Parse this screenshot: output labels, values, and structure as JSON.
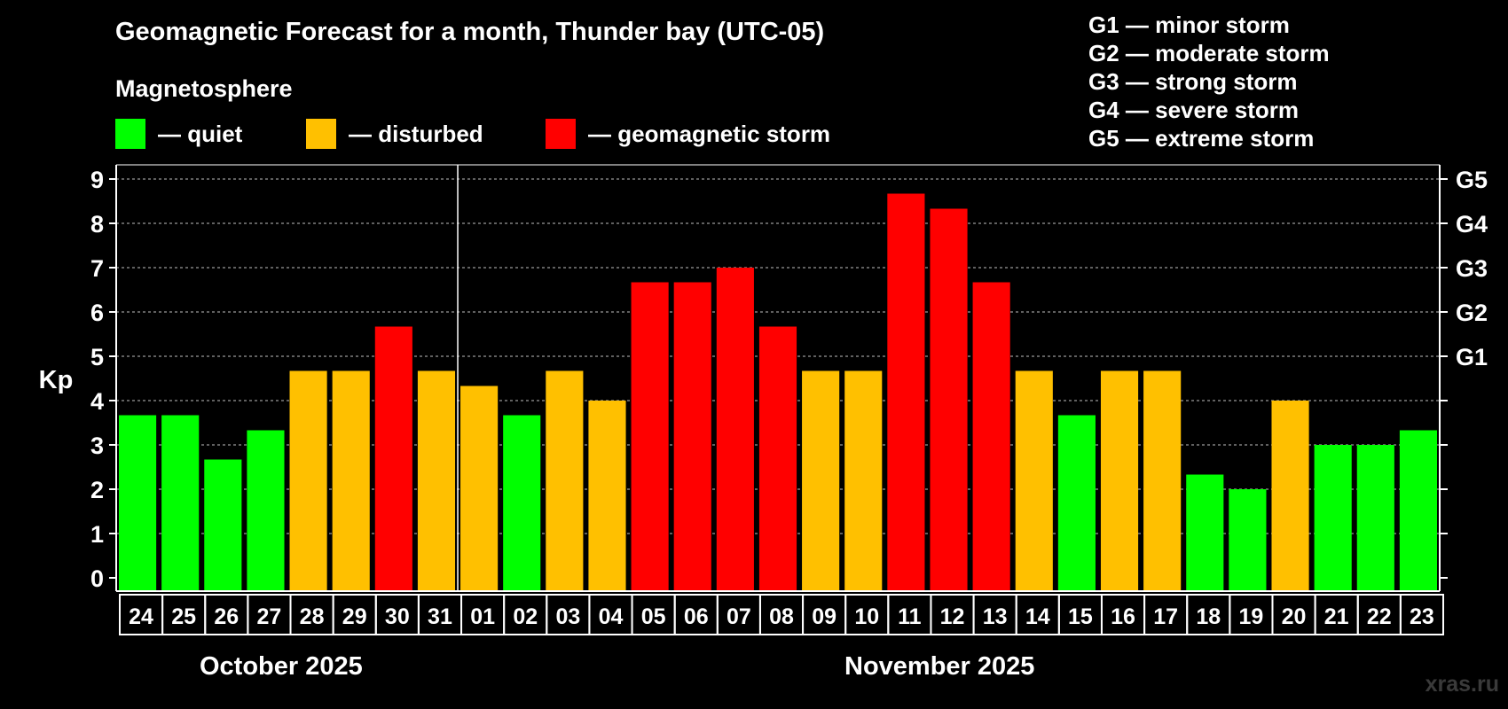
{
  "title": "Geomagnetic Forecast for a month, Thunder bay (UTC-05)",
  "magnetosphere": {
    "title": "Magnetosphere",
    "legend": [
      {
        "label": "— quiet",
        "color": "#00ff00"
      },
      {
        "label": "— disturbed",
        "color": "#ffc000"
      },
      {
        "label": "— geomagnetic storm",
        "color": "#ff0000"
      }
    ]
  },
  "g_scale": [
    "G1 — minor storm",
    "G2 — moderate storm",
    "G3 — strong storm",
    "G4 — severe storm",
    "G5 — extreme storm"
  ],
  "months": [
    "October 2025",
    "November 2025"
  ],
  "watermark": "xras.ru",
  "colors": {
    "quiet": "#00ff00",
    "disturbed": "#ffc000",
    "storm": "#ff0000",
    "grid": "#bfbfbf",
    "axis": "#ffffff"
  },
  "chart_data": {
    "type": "bar",
    "title": "Geomagnetic Forecast for a month, Thunder bay (UTC-05)",
    "ylabel": "Kp",
    "xlabel": "",
    "ylim": [
      0,
      9
    ],
    "yticks": [
      0,
      1,
      2,
      3,
      4,
      5,
      6,
      7,
      8,
      9
    ],
    "y2ticks": [
      {
        "value": 5,
        "label": "G1"
      },
      {
        "value": 6,
        "label": "G2"
      },
      {
        "value": 7,
        "label": "G3"
      },
      {
        "value": 8,
        "label": "G4"
      },
      {
        "value": 9,
        "label": "G5"
      }
    ],
    "grid": true,
    "month_divider_after": "31",
    "categories": [
      "24",
      "25",
      "26",
      "27",
      "28",
      "29",
      "30",
      "31",
      "01",
      "02",
      "03",
      "04",
      "05",
      "06",
      "07",
      "08",
      "09",
      "10",
      "11",
      "12",
      "13",
      "14",
      "15",
      "16",
      "17",
      "18",
      "19",
      "20",
      "21",
      "22",
      "23"
    ],
    "values": [
      3.67,
      3.67,
      2.67,
      3.33,
      4.67,
      4.67,
      5.67,
      4.67,
      4.33,
      3.67,
      4.67,
      4.0,
      6.67,
      6.67,
      7.0,
      5.67,
      4.67,
      4.67,
      8.67,
      8.33,
      6.67,
      4.67,
      3.67,
      4.67,
      4.67,
      2.33,
      2.0,
      4.0,
      3.0,
      3.0,
      3.33
    ],
    "levels": [
      "quiet",
      "quiet",
      "quiet",
      "quiet",
      "disturbed",
      "disturbed",
      "storm",
      "disturbed",
      "disturbed",
      "quiet",
      "disturbed",
      "disturbed",
      "storm",
      "storm",
      "storm",
      "storm",
      "disturbed",
      "disturbed",
      "storm",
      "storm",
      "storm",
      "disturbed",
      "quiet",
      "disturbed",
      "disturbed",
      "quiet",
      "quiet",
      "disturbed",
      "quiet",
      "quiet",
      "quiet"
    ]
  }
}
